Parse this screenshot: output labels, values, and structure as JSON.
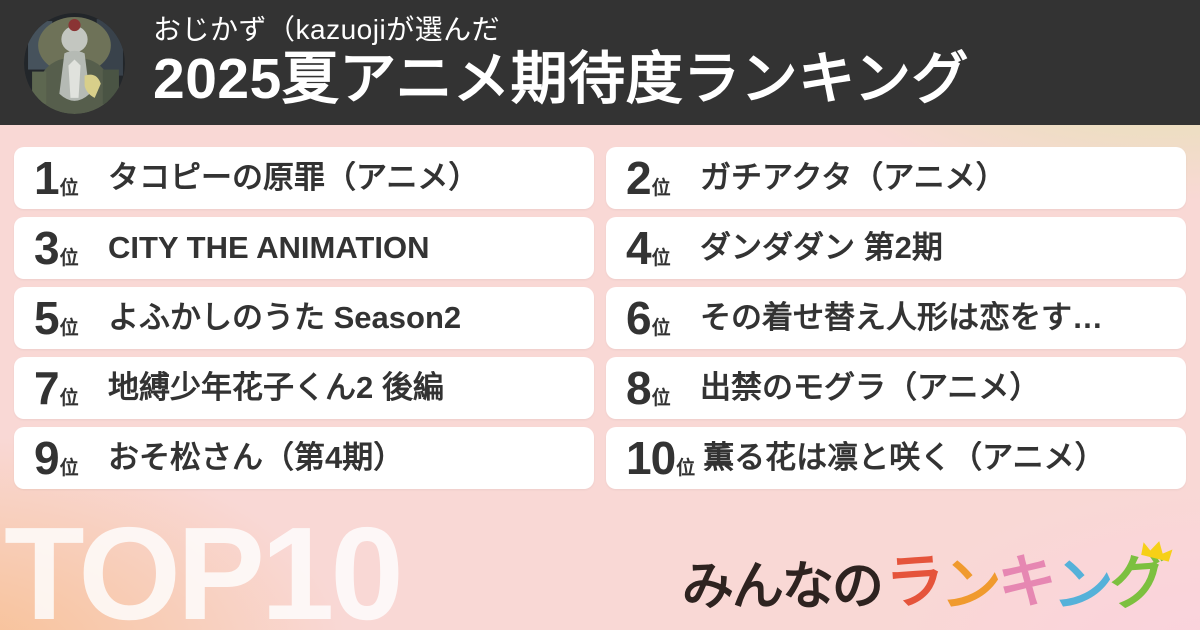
{
  "header": {
    "subtitle": "おじかず（kazuojiが選んだ",
    "title": "2025夏アニメ期待度ランキング",
    "avatar": "mecha-character-avatar"
  },
  "ranking": {
    "rank_suffix": "位",
    "items": [
      {
        "rank": "1",
        "title": "タコピーの原罪（アニメ）"
      },
      {
        "rank": "2",
        "title": "ガチアクタ（アニメ）"
      },
      {
        "rank": "3",
        "title": "CITY THE ANIMATION"
      },
      {
        "rank": "4",
        "title": "ダンダダン 第2期"
      },
      {
        "rank": "5",
        "title": "よふかしのうた Season2"
      },
      {
        "rank": "6",
        "title": "その着せ替え人形は恋をす…"
      },
      {
        "rank": "7",
        "title": "地縛少年花子くん2 後編"
      },
      {
        "rank": "8",
        "title": "出禁のモグラ（アニメ）"
      },
      {
        "rank": "9",
        "title": "おそ松さん（第4期）"
      },
      {
        "rank": "10",
        "title": "薫る花は凛と咲く（アニメ）"
      }
    ]
  },
  "footer": {
    "watermark": "TOP10",
    "logo": {
      "prefix": "みんなの",
      "colored_letters": [
        {
          "char": "ラ",
          "color": "#e5543b"
        },
        {
          "char": "ン",
          "color": "#f09a2e"
        },
        {
          "char": "キ",
          "color": "#e687b2"
        },
        {
          "char": "ン",
          "color": "#55b1d9"
        },
        {
          "char": "グ",
          "color": "#7cc03f"
        }
      ]
    }
  },
  "colors": {
    "header_bg": "#333333",
    "header_text": "#ffffff",
    "card_bg": "#ffffff",
    "card_text": "#333333",
    "watermark": "#ffffff",
    "bg_pink": "#f9d8d5",
    "bg_green": "#d5eb9c",
    "bg_cream": "#f5ecc5",
    "bg_peach": "#f7c093",
    "bg_rose": "#fbd2de",
    "logo_dark": "#2e2320",
    "crown": "#f6d017"
  }
}
